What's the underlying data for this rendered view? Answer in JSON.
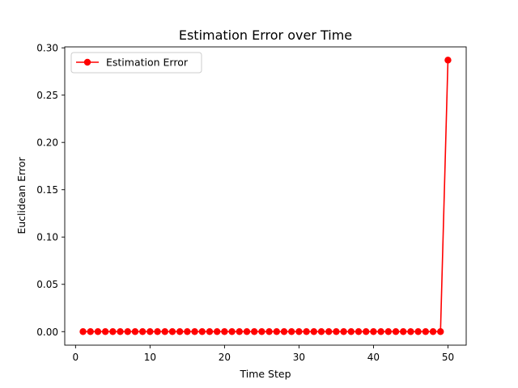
{
  "chart_data": {
    "type": "line",
    "title": "Estimation Error over Time",
    "xlabel": "Time Step",
    "ylabel": "Euclidean Error",
    "xlim": [
      -1.45,
      52.45
    ],
    "ylim": [
      -0.0143,
      0.301
    ],
    "xticks": [
      0,
      10,
      20,
      30,
      40,
      50
    ],
    "yticks": [
      0.0,
      0.05,
      0.1,
      0.15,
      0.2,
      0.25,
      0.3
    ],
    "ytick_labels": [
      "0.00",
      "0.05",
      "0.10",
      "0.15",
      "0.20",
      "0.25",
      "0.30"
    ],
    "xtick_labels": [
      "0",
      "10",
      "20",
      "30",
      "40",
      "50"
    ],
    "grid": false,
    "legend_position": "top-left",
    "series": [
      {
        "name": "Estimation Error",
        "color": "#ff0000",
        "marker": "circle",
        "x": [
          1,
          2,
          3,
          4,
          5,
          6,
          7,
          8,
          9,
          10,
          11,
          12,
          13,
          14,
          15,
          16,
          17,
          18,
          19,
          20,
          21,
          22,
          23,
          24,
          25,
          26,
          27,
          28,
          29,
          30,
          31,
          32,
          33,
          34,
          35,
          36,
          37,
          38,
          39,
          40,
          41,
          42,
          43,
          44,
          45,
          46,
          47,
          48,
          49,
          50
        ],
        "y": [
          0,
          0,
          0,
          0,
          0,
          0,
          0,
          0,
          0,
          0,
          0,
          0,
          0,
          0,
          0,
          0,
          0,
          0,
          0,
          0,
          0,
          0,
          0,
          0,
          0,
          0,
          0,
          0,
          0,
          0,
          0,
          0,
          0,
          0,
          0,
          0,
          0,
          0,
          0,
          0,
          0,
          0,
          0,
          0,
          0,
          0,
          0,
          0,
          0,
          0.287
        ]
      }
    ]
  }
}
